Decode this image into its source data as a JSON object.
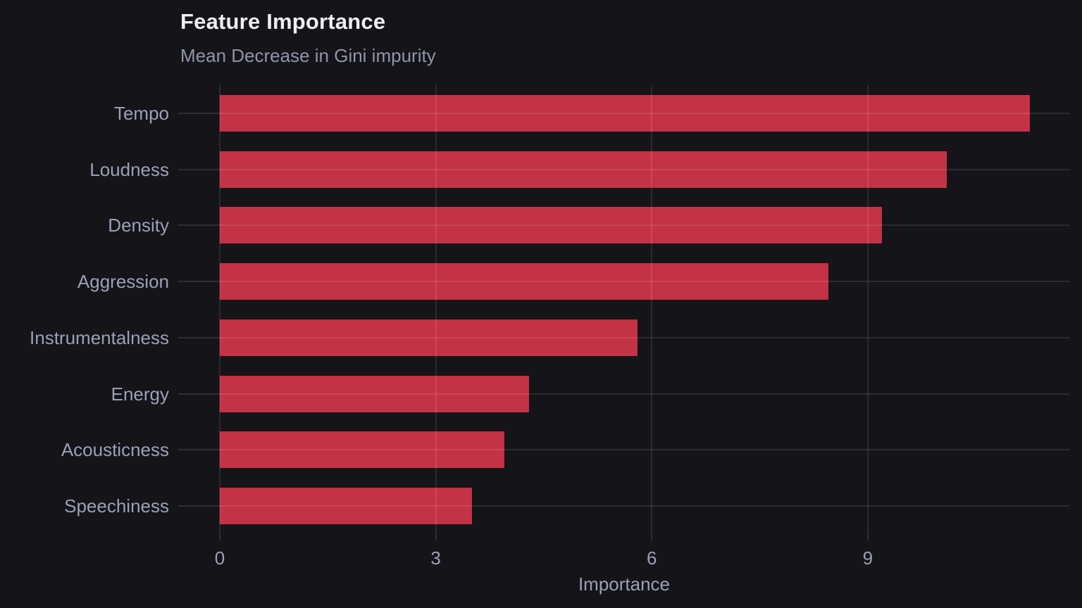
{
  "chart_data": {
    "type": "bar",
    "orientation": "horizontal",
    "title": "Feature Importance",
    "subtitle": "Mean Decrease in Gini impurity",
    "xlabel": "Importance",
    "categories": [
      "Tempo",
      "Loudness",
      "Density",
      "Aggression",
      "Instrumentalness",
      "Energy",
      "Acousticness",
      "Speechiness"
    ],
    "values": [
      11.25,
      10.1,
      9.2,
      8.45,
      5.8,
      4.3,
      3.95,
      3.5
    ],
    "xticks": [
      0,
      3,
      6,
      9
    ],
    "xlim": [
      0,
      11.8
    ],
    "grid": true,
    "legend": "none",
    "colors": {
      "background": "#141419",
      "bar": "#c43246",
      "title": "#edeff4",
      "subtitle": "#8f96aa",
      "axis_label": "#9ba1b5",
      "gridline_overlay": "rgba(255,255,255,0.10)",
      "tick_line": "#2e2e38"
    }
  }
}
